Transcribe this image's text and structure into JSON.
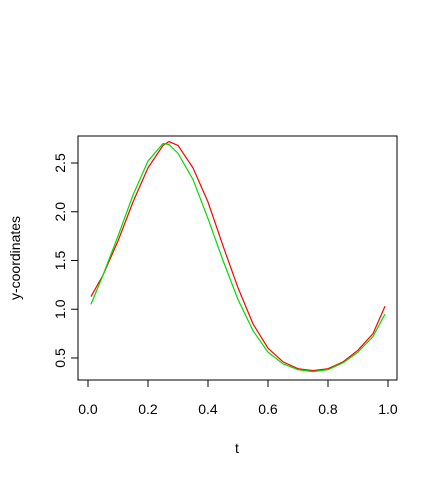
{
  "chart_data": {
    "type": "line",
    "xlabel": "t",
    "ylabel": "y-coordinates",
    "x": [
      0.01,
      0.05,
      0.1,
      0.15,
      0.2,
      0.25,
      0.27,
      0.3,
      0.35,
      0.4,
      0.45,
      0.5,
      0.55,
      0.6,
      0.65,
      0.7,
      0.75,
      0.8,
      0.85,
      0.9,
      0.95,
      0.99
    ],
    "series": [
      {
        "color": "#ff0000",
        "values": [
          1.13,
          1.35,
          1.7,
          2.1,
          2.45,
          2.68,
          2.72,
          2.68,
          2.45,
          2.1,
          1.65,
          1.22,
          0.85,
          0.6,
          0.46,
          0.39,
          0.37,
          0.39,
          0.46,
          0.58,
          0.75,
          1.03
        ]
      },
      {
        "color": "#00dd00",
        "values": [
          1.05,
          1.35,
          1.75,
          2.17,
          2.52,
          2.7,
          2.69,
          2.6,
          2.33,
          1.93,
          1.5,
          1.1,
          0.78,
          0.56,
          0.44,
          0.38,
          0.36,
          0.38,
          0.45,
          0.56,
          0.72,
          0.95
        ]
      }
    ],
    "xlim": [
      -0.0333,
      1.03
    ],
    "ylim": [
      0.274,
      2.777
    ],
    "xticks": [
      {
        "value": 0,
        "label": "0.0"
      },
      0.2,
      0.4,
      0.6,
      0.8,
      {
        "value": 1,
        "label": "1.0"
      }
    ],
    "yticks": [
      0.5,
      {
        "value": 1,
        "label": "1.0"
      },
      1.5,
      {
        "value": 2,
        "label": "2.0"
      },
      2.5
    ]
  }
}
